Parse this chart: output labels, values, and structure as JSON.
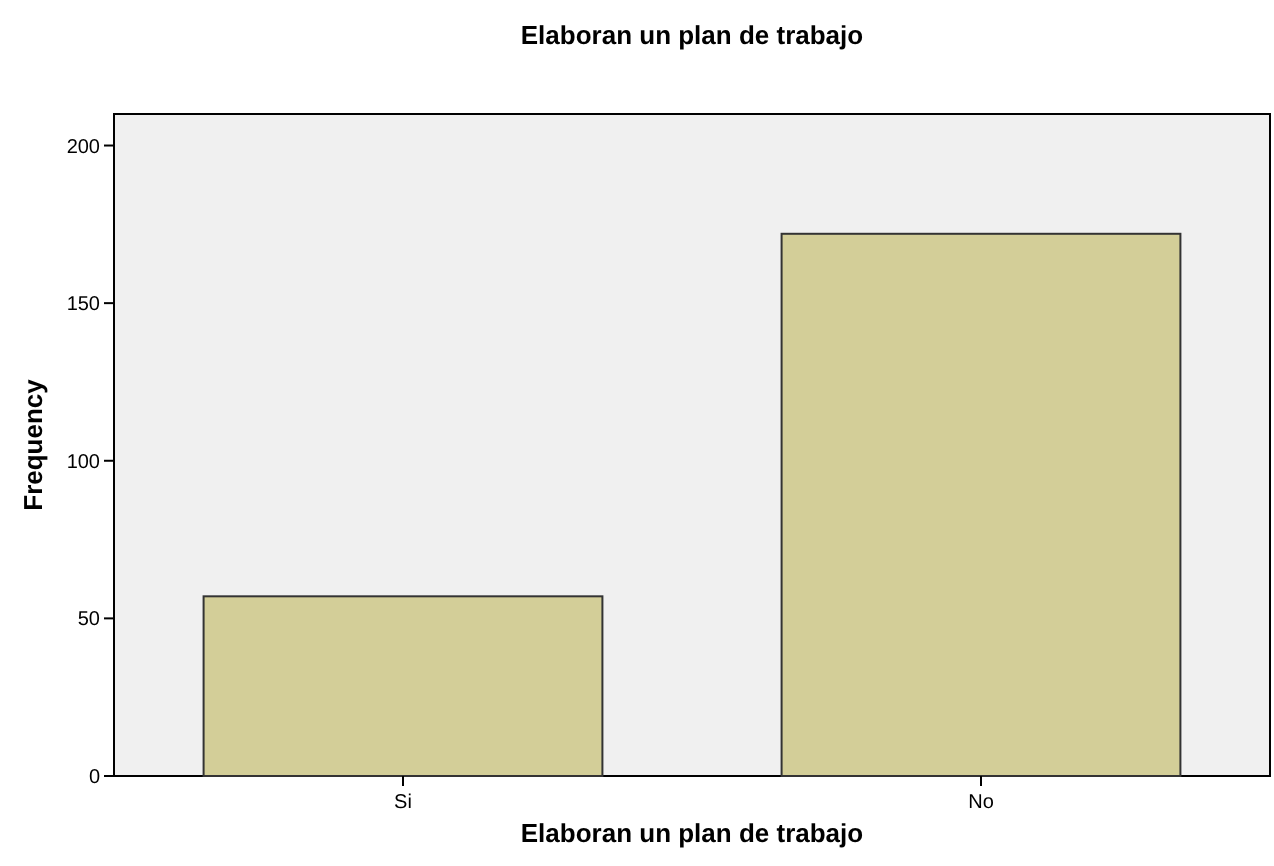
{
  "chart_data": {
    "type": "bar",
    "title": "Elaboran un plan de trabajo",
    "xlabel": "Elaboran un plan de trabajo",
    "ylabel": "Frequency",
    "categories": [
      "Si",
      "No"
    ],
    "values": [
      57,
      172
    ],
    "color": "#d3ce98",
    "ylim": [
      0,
      210
    ],
    "yticks": [
      0,
      50,
      100,
      150,
      200
    ],
    "grid": false
  }
}
